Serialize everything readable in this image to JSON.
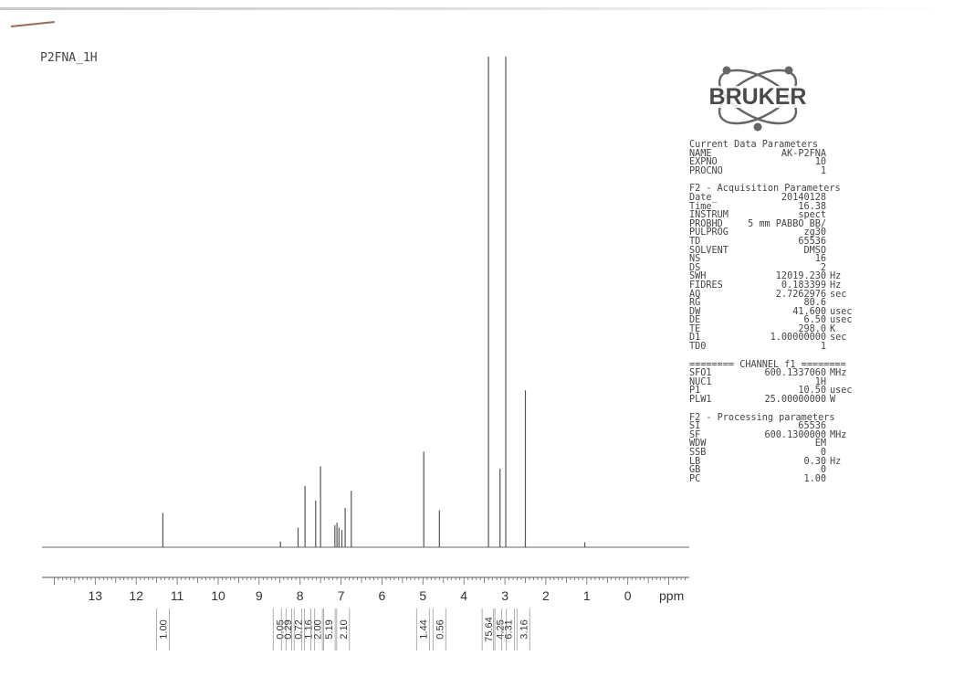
{
  "sample_title": "P2FNA_1H",
  "brand": {
    "name": "BRUKER",
    "color": "#4a4a4a"
  },
  "params": {
    "current": {
      "heading": "Current Data Parameters",
      "rows": [
        {
          "key": "NAME",
          "value": "AK-P2FNA",
          "unit": ""
        },
        {
          "key": "EXPNO",
          "value": "10",
          "unit": ""
        },
        {
          "key": "PROCNO",
          "value": "1",
          "unit": ""
        }
      ]
    },
    "acquisition": {
      "heading": "F2 - Acquisition Parameters",
      "rows": [
        {
          "key": "Date_",
          "value": "20140128",
          "unit": ""
        },
        {
          "key": "Time",
          "value": "16.38",
          "unit": ""
        },
        {
          "key": "INSTRUM",
          "value": "spect",
          "unit": ""
        },
        {
          "key": "PROBHD",
          "value": "5 mm PABBO BB/",
          "unit": ""
        },
        {
          "key": "PULPROG",
          "value": "zg30",
          "unit": ""
        },
        {
          "key": "TD",
          "value": "65536",
          "unit": ""
        },
        {
          "key": "SOLVENT",
          "value": "DMSO",
          "unit": ""
        },
        {
          "key": "NS",
          "value": "16",
          "unit": ""
        },
        {
          "key": "DS",
          "value": "2",
          "unit": ""
        },
        {
          "key": "SWH",
          "value": "12019.230",
          "unit": "Hz"
        },
        {
          "key": "FIDRES",
          "value": "0.183399",
          "unit": "Hz"
        },
        {
          "key": "AQ",
          "value": "2.7262976",
          "unit": "sec"
        },
        {
          "key": "RG",
          "value": "80.6",
          "unit": ""
        },
        {
          "key": "DW",
          "value": "41.600",
          "unit": "usec"
        },
        {
          "key": "DE",
          "value": "6.50",
          "unit": "usec"
        },
        {
          "key": "TE",
          "value": "298.0",
          "unit": "K"
        },
        {
          "key": "D1",
          "value": "1.00000000",
          "unit": "sec"
        },
        {
          "key": "TD0",
          "value": "1",
          "unit": ""
        }
      ]
    },
    "channel": {
      "heading": "======== CHANNEL f1 ========",
      "rows": [
        {
          "key": "SFO1",
          "value": "600.1337060",
          "unit": "MHz"
        },
        {
          "key": "NUC1",
          "value": "1H",
          "unit": ""
        },
        {
          "key": "P1",
          "value": "10.50",
          "unit": "usec"
        },
        {
          "key": "PLW1",
          "value": "25.00000000",
          "unit": "W"
        }
      ]
    },
    "processing": {
      "heading": "F2 - Processing parameters",
      "rows": [
        {
          "key": "SI",
          "value": "65536",
          "unit": ""
        },
        {
          "key": "SF",
          "value": "600.1300000",
          "unit": "MHz"
        },
        {
          "key": "WDW",
          "value": "EM",
          "unit": ""
        },
        {
          "key": "SSB",
          "value": "0",
          "unit": ""
        },
        {
          "key": "LB",
          "value": "0.30",
          "unit": "Hz"
        },
        {
          "key": "GB",
          "value": "0",
          "unit": ""
        },
        {
          "key": "PC",
          "value": "1.00",
          "unit": ""
        }
      ]
    }
  },
  "chart_data": {
    "type": "line",
    "xlabel": "ppm",
    "x_reversed": true,
    "xlim": [
      14.3,
      -1.5
    ],
    "x_ticks": [
      "13",
      "12",
      "11",
      "10",
      "9",
      "8",
      "7",
      "6",
      "5",
      "4",
      "3",
      "2",
      "1",
      "0"
    ],
    "peaks": [
      {
        "ppm": 11.35,
        "height": 0.07
      },
      {
        "ppm": 8.48,
        "height": 0.012
      },
      {
        "ppm": 8.05,
        "height": 0.04
      },
      {
        "ppm": 7.88,
        "height": 0.125
      },
      {
        "ppm": 7.62,
        "height": 0.095
      },
      {
        "ppm": 7.5,
        "height": 0.165
      },
      {
        "ppm": 7.15,
        "height": 0.045
      },
      {
        "ppm": 7.1,
        "height": 0.05
      },
      {
        "ppm": 7.05,
        "height": 0.04
      },
      {
        "ppm": 6.98,
        "height": 0.035
      },
      {
        "ppm": 6.9,
        "height": 0.08
      },
      {
        "ppm": 6.75,
        "height": 0.115
      },
      {
        "ppm": 4.98,
        "height": 0.195
      },
      {
        "ppm": 4.6,
        "height": 0.075
      },
      {
        "ppm": 3.4,
        "height": 1.0
      },
      {
        "ppm": 3.12,
        "height": 0.16
      },
      {
        "ppm": 2.98,
        "height": 1.0
      },
      {
        "ppm": 2.5,
        "height": 0.32
      },
      {
        "ppm": 1.05,
        "height": 0.01
      }
    ],
    "integrals": [
      {
        "ppm": 11.35,
        "label": "1.00"
      },
      {
        "ppm": 8.5,
        "label": "0.05"
      },
      {
        "ppm": 8.3,
        "label": "0.29"
      },
      {
        "ppm": 8.05,
        "label": "0.72"
      },
      {
        "ppm": 7.8,
        "label": "1.16"
      },
      {
        "ppm": 7.58,
        "label": "2.00"
      },
      {
        "ppm": 7.3,
        "label": "5.19"
      },
      {
        "ppm": 6.95,
        "label": "2.10"
      },
      {
        "ppm": 5.0,
        "label": "1.44"
      },
      {
        "ppm": 4.6,
        "label": "0.56"
      },
      {
        "ppm": 3.4,
        "label": "75.64"
      },
      {
        "ppm": 3.12,
        "label": "4.25"
      },
      {
        "ppm": 2.92,
        "label": "6.31"
      },
      {
        "ppm": 2.55,
        "label": "3.16"
      }
    ]
  }
}
